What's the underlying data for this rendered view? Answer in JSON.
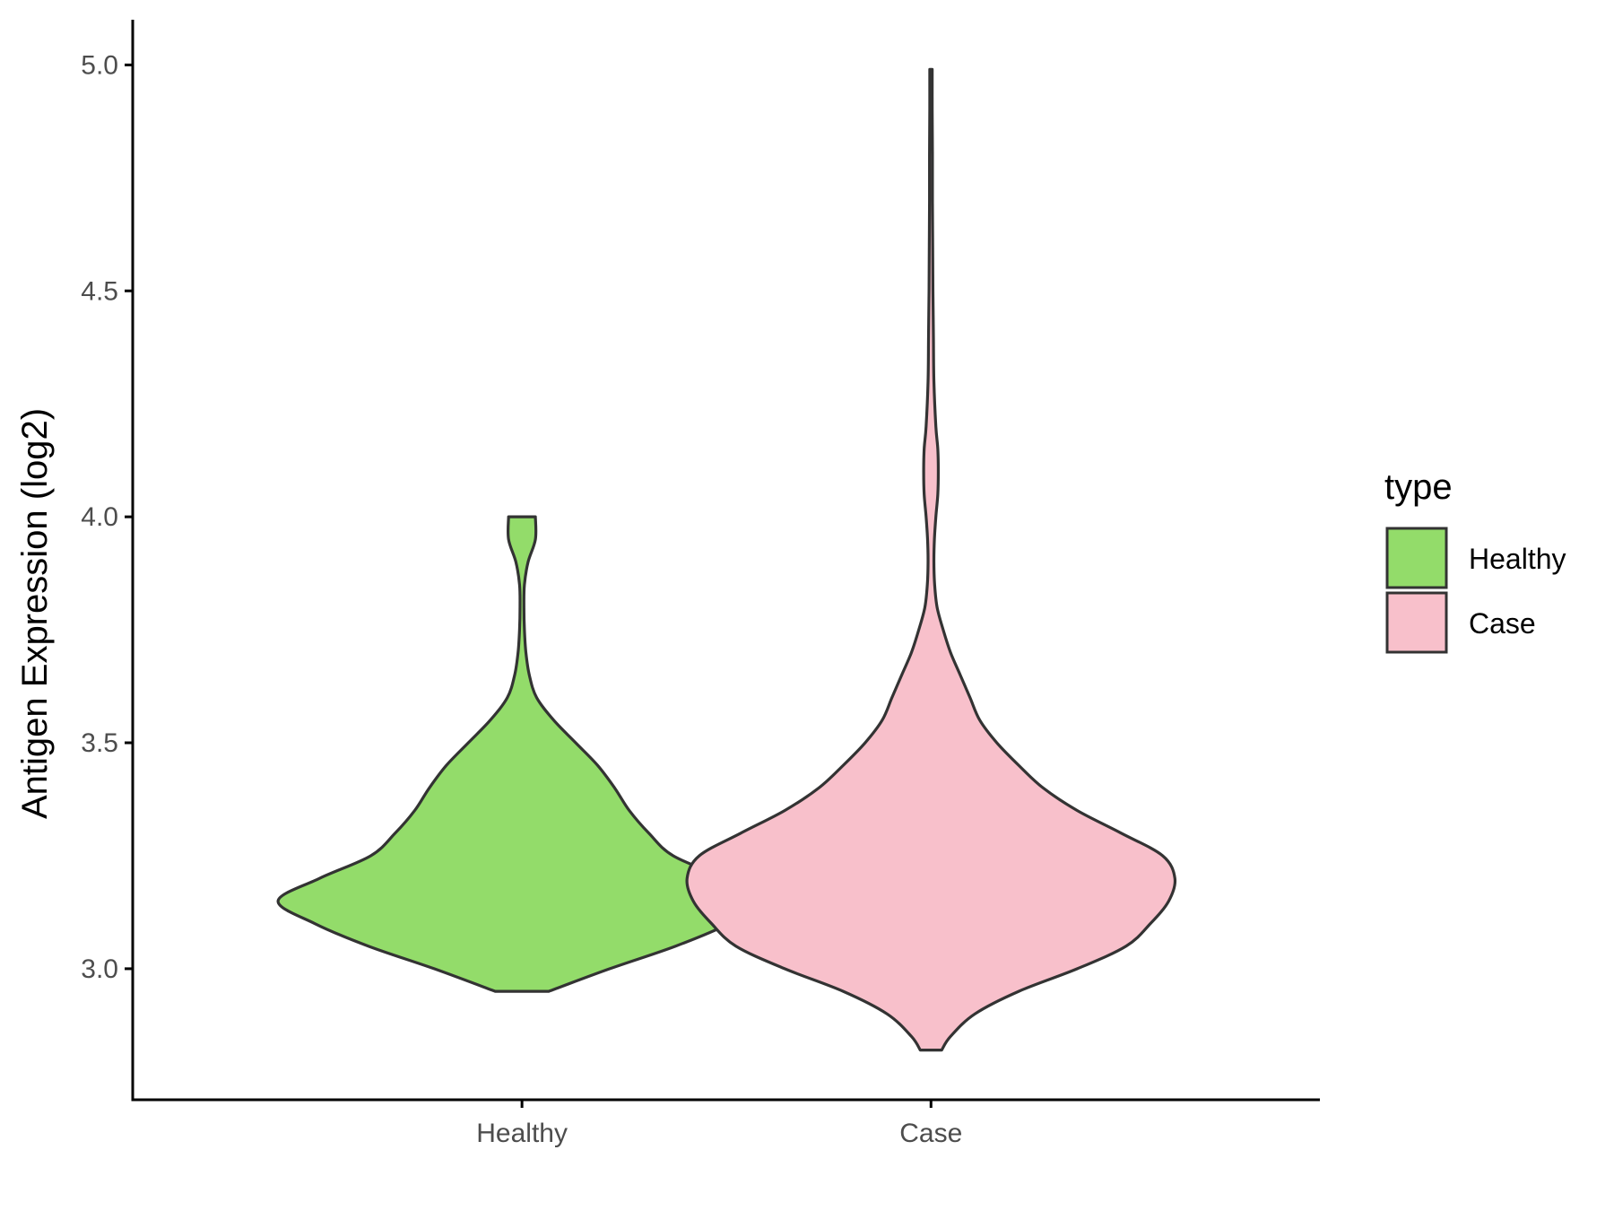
{
  "chart_data": {
    "type": "violin",
    "categories": [
      "Healthy",
      "Case"
    ],
    "xlabel": "",
    "ylabel": "Antigen Expression (log2)",
    "ylim": [
      2.71,
      5.1
    ],
    "yticks": [
      3.0,
      3.5,
      4.0,
      4.5,
      5.0
    ],
    "ytick_labels": [
      "3.0",
      "3.5",
      "4.0",
      "4.5",
      "5.0"
    ],
    "grid": false,
    "legend": {
      "title": "type",
      "placement": "right",
      "items": [
        {
          "label": "Healthy",
          "color": "#93dc6a"
        },
        {
          "label": "Case",
          "color": "#f8c0cb"
        }
      ]
    },
    "series": [
      {
        "name": "Healthy",
        "color": "#93dc6a",
        "min": 2.95,
        "max": 4.0,
        "profile": [
          [
            2.95,
            0.11
          ],
          [
            3.0,
            0.36
          ],
          [
            3.05,
            0.63
          ],
          [
            3.1,
            0.85
          ],
          [
            3.15,
            1.0
          ],
          [
            3.2,
            0.83
          ],
          [
            3.25,
            0.62
          ],
          [
            3.3,
            0.52
          ],
          [
            3.35,
            0.44
          ],
          [
            3.4,
            0.38
          ],
          [
            3.45,
            0.31
          ],
          [
            3.5,
            0.22
          ],
          [
            3.55,
            0.13
          ],
          [
            3.6,
            0.06
          ],
          [
            3.65,
            0.03
          ],
          [
            3.7,
            0.016
          ],
          [
            3.75,
            0.01
          ],
          [
            3.8,
            0.008
          ],
          [
            3.85,
            0.01
          ],
          [
            3.9,
            0.025
          ],
          [
            3.95,
            0.055
          ],
          [
            4.0,
            0.055
          ]
        ]
      },
      {
        "name": "Case",
        "color": "#f8c0cb",
        "min": 2.82,
        "max": 4.99,
        "profile": [
          [
            2.82,
            0.044
          ],
          [
            2.85,
            0.08
          ],
          [
            2.9,
            0.18
          ],
          [
            2.95,
            0.36
          ],
          [
            3.0,
            0.6
          ],
          [
            3.05,
            0.8
          ],
          [
            3.1,
            0.9
          ],
          [
            3.15,
            0.975
          ],
          [
            3.2,
            1.0
          ],
          [
            3.25,
            0.95
          ],
          [
            3.3,
            0.78
          ],
          [
            3.35,
            0.6
          ],
          [
            3.4,
            0.46
          ],
          [
            3.45,
            0.36
          ],
          [
            3.5,
            0.27
          ],
          [
            3.55,
            0.2
          ],
          [
            3.6,
            0.16
          ],
          [
            3.65,
            0.12
          ],
          [
            3.7,
            0.08
          ],
          [
            3.75,
            0.05
          ],
          [
            3.8,
            0.025
          ],
          [
            3.85,
            0.015
          ],
          [
            3.9,
            0.012
          ],
          [
            3.95,
            0.014
          ],
          [
            4.0,
            0.02
          ],
          [
            4.05,
            0.028
          ],
          [
            4.1,
            0.03
          ],
          [
            4.15,
            0.028
          ],
          [
            4.2,
            0.02
          ],
          [
            4.3,
            0.012
          ],
          [
            4.4,
            0.01
          ],
          [
            4.5,
            0.008
          ],
          [
            4.6,
            0.007
          ],
          [
            4.7,
            0.006
          ],
          [
            4.8,
            0.006
          ],
          [
            4.9,
            0.005
          ],
          [
            4.99,
            0.005
          ]
        ]
      }
    ]
  }
}
